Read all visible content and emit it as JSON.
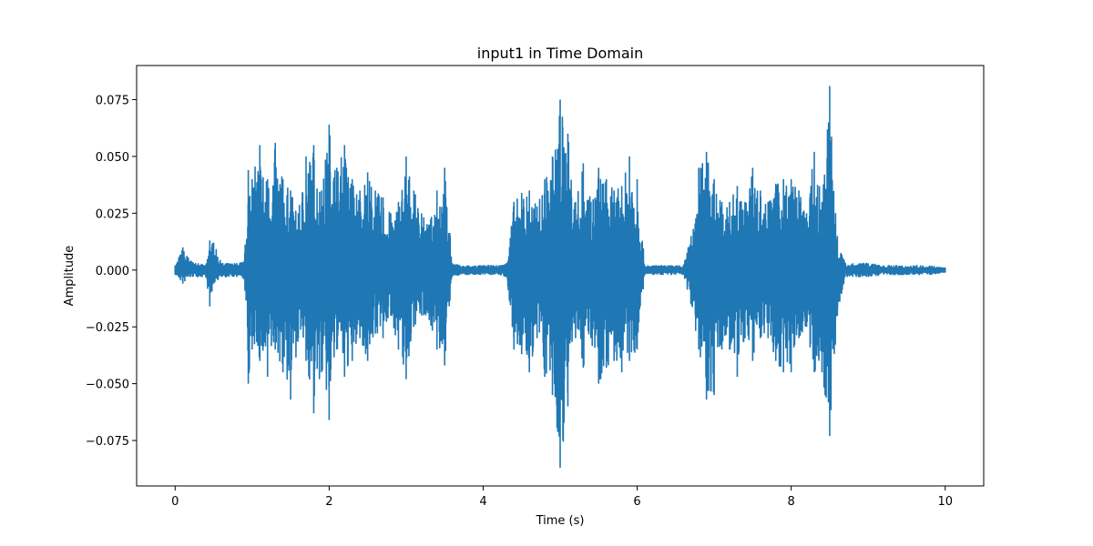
{
  "chart_data": {
    "type": "line",
    "title": "input1 in Time Domain",
    "xlabel": "Time (s)",
    "ylabel": "Amplitude",
    "xlim": [
      -0.5,
      10.5
    ],
    "ylim": [
      -0.095,
      0.09
    ],
    "grid": false,
    "series_color": "#1f77b4",
    "xticks": [
      0,
      2,
      4,
      6,
      8,
      10
    ],
    "xtick_labels": [
      "0",
      "2",
      "4",
      "6",
      "8",
      "10"
    ],
    "yticks": [
      -0.075,
      -0.05,
      -0.025,
      0.0,
      0.025,
      0.05,
      0.075
    ],
    "ytick_labels": [
      "−0.075",
      "−0.050",
      "−0.025",
      "0.000",
      "0.025",
      "0.050",
      "0.075"
    ],
    "series": [
      {
        "envelope_x": [
          0.0,
          0.1,
          0.2,
          0.3,
          0.4,
          0.45,
          0.5,
          0.6,
          0.7,
          0.8,
          0.9,
          0.95,
          1.0,
          1.1,
          1.2,
          1.3,
          1.4,
          1.5,
          1.6,
          1.7,
          1.8,
          1.9,
          2.0,
          2.1,
          2.2,
          2.3,
          2.4,
          2.5,
          2.6,
          2.7,
          2.8,
          2.9,
          3.0,
          3.1,
          3.2,
          3.3,
          3.4,
          3.5,
          3.6,
          3.7,
          3.8,
          3.9,
          4.0,
          4.1,
          4.2,
          4.3,
          4.4,
          4.5,
          4.6,
          4.7,
          4.8,
          4.9,
          5.0,
          5.1,
          5.2,
          5.3,
          5.4,
          5.5,
          5.6,
          5.7,
          5.8,
          5.9,
          6.0,
          6.1,
          6.2,
          6.3,
          6.4,
          6.5,
          6.6,
          6.7,
          6.8,
          6.9,
          7.0,
          7.1,
          7.2,
          7.3,
          7.4,
          7.5,
          7.6,
          7.7,
          7.8,
          7.9,
          8.0,
          8.1,
          8.2,
          8.3,
          8.4,
          8.5,
          8.6,
          8.7,
          8.8,
          8.9,
          9.0,
          9.2,
          9.4,
          9.6,
          9.8,
          10.0
        ],
        "envelope_max": [
          0.002,
          0.01,
          0.004,
          0.003,
          0.002,
          0.013,
          0.012,
          0.003,
          0.003,
          0.003,
          0.004,
          0.044,
          0.04,
          0.055,
          0.04,
          0.056,
          0.04,
          0.035,
          0.025,
          0.05,
          0.055,
          0.035,
          0.064,
          0.045,
          0.055,
          0.04,
          0.035,
          0.043,
          0.035,
          0.032,
          0.025,
          0.03,
          0.05,
          0.035,
          0.025,
          0.02,
          0.035,
          0.045,
          0.003,
          0.002,
          0.002,
          0.002,
          0.002,
          0.002,
          0.002,
          0.003,
          0.03,
          0.034,
          0.035,
          0.028,
          0.04,
          0.05,
          0.075,
          0.06,
          0.03,
          0.047,
          0.03,
          0.045,
          0.04,
          0.035,
          0.037,
          0.05,
          0.04,
          0.002,
          0.002,
          0.002,
          0.002,
          0.002,
          0.002,
          0.015,
          0.045,
          0.052,
          0.04,
          0.03,
          0.03,
          0.037,
          0.03,
          0.045,
          0.035,
          0.03,
          0.038,
          0.04,
          0.04,
          0.035,
          0.025,
          0.052,
          0.03,
          0.081,
          0.015,
          0.003,
          0.003,
          0.003,
          0.003,
          0.002,
          0.002,
          0.002,
          0.002,
          0.001
        ],
        "envelope_min": [
          -0.002,
          -0.006,
          -0.003,
          -0.003,
          -0.003,
          -0.016,
          -0.006,
          -0.003,
          -0.003,
          -0.003,
          -0.004,
          -0.05,
          -0.035,
          -0.04,
          -0.047,
          -0.035,
          -0.045,
          -0.057,
          -0.03,
          -0.04,
          -0.063,
          -0.045,
          -0.066,
          -0.035,
          -0.047,
          -0.04,
          -0.03,
          -0.04,
          -0.028,
          -0.03,
          -0.02,
          -0.035,
          -0.048,
          -0.025,
          -0.02,
          -0.022,
          -0.035,
          -0.042,
          -0.003,
          -0.002,
          -0.002,
          -0.002,
          -0.002,
          -0.002,
          -0.002,
          -0.003,
          -0.035,
          -0.037,
          -0.045,
          -0.03,
          -0.047,
          -0.055,
          -0.087,
          -0.06,
          -0.03,
          -0.043,
          -0.03,
          -0.05,
          -0.043,
          -0.04,
          -0.045,
          -0.04,
          -0.035,
          -0.002,
          -0.002,
          -0.002,
          -0.002,
          -0.002,
          -0.002,
          -0.015,
          -0.035,
          -0.057,
          -0.055,
          -0.035,
          -0.035,
          -0.047,
          -0.03,
          -0.04,
          -0.03,
          -0.03,
          -0.04,
          -0.045,
          -0.045,
          -0.03,
          -0.025,
          -0.045,
          -0.045,
          -0.073,
          -0.02,
          -0.003,
          -0.003,
          -0.003,
          -0.003,
          -0.002,
          -0.002,
          -0.002,
          -0.002,
          -0.001
        ]
      }
    ]
  }
}
